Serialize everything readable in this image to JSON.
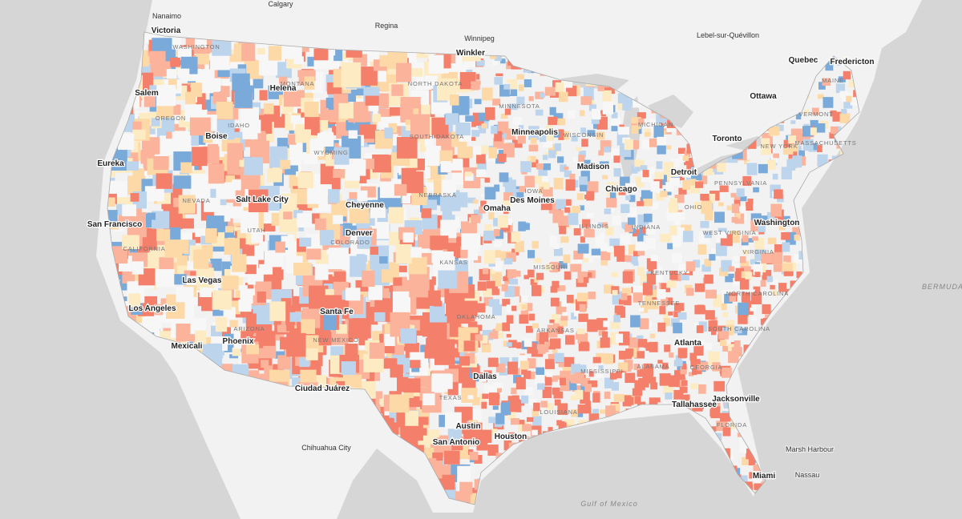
{
  "map": {
    "cities": [
      "Calgary",
      "Regina",
      "Nanaimo",
      "Victoria",
      "Winnipeg",
      "Winkler",
      "Lebel-sur-Quévillon",
      "Quebec",
      "Fredericton",
      "Ottawa",
      "Toronto",
      "Salem",
      "Helena",
      "Boise",
      "Eureka",
      "Minneapolis",
      "Madison",
      "Detroit",
      "Chicago",
      "Salt Lake City",
      "Cheyenne",
      "Des Moines",
      "Omaha",
      "Washington",
      "San Francisco",
      "Denver",
      "Las Vegas",
      "Los Angeles",
      "Santa Fe",
      "Phoenix",
      "Mexicali",
      "Atlanta",
      "Dallas",
      "Ciudad Juárez",
      "Jacksonville",
      "Tallahassee",
      "Austin",
      "San Antonio",
      "Houston",
      "Chihuahua City",
      "Marsh Harbour",
      "Miami",
      "Nassau"
    ],
    "states": [
      "WASHINGTON",
      "OREGON",
      "IDAHO",
      "MONTANA",
      "WYOMING",
      "NORTH DAKOTA",
      "SOUTH DAKOTA",
      "MINNESOTA",
      "WISCONSIN",
      "MICHIGAN",
      "NEBRASKA",
      "IOWA",
      "NEVADA",
      "UTAH",
      "COLORADO",
      "KANSAS",
      "ILLINOIS",
      "INDIANA",
      "OHIO",
      "PENNSYLVANIA",
      "NEW YORK",
      "VERMONT",
      "MAINE",
      "MASSACHUSETTS",
      "CALIFORNIA",
      "ARIZONA",
      "NEW MEXICO",
      "OKLAHOMA",
      "MISSOURI",
      "KENTUCKY",
      "WEST VIRGINIA",
      "VIRGINIA",
      "TENNESSEE",
      "NORTH CAROLINA",
      "ARKANSAS",
      "SOUTH CAROLINA",
      "MISSISSIPPI",
      "ALABAMA",
      "GEORGIA",
      "LOUISIANA",
      "TEXAS",
      "FLORIDA"
    ],
    "water": [
      "Gulf of Mexico",
      "BERMUDA"
    ]
  }
}
